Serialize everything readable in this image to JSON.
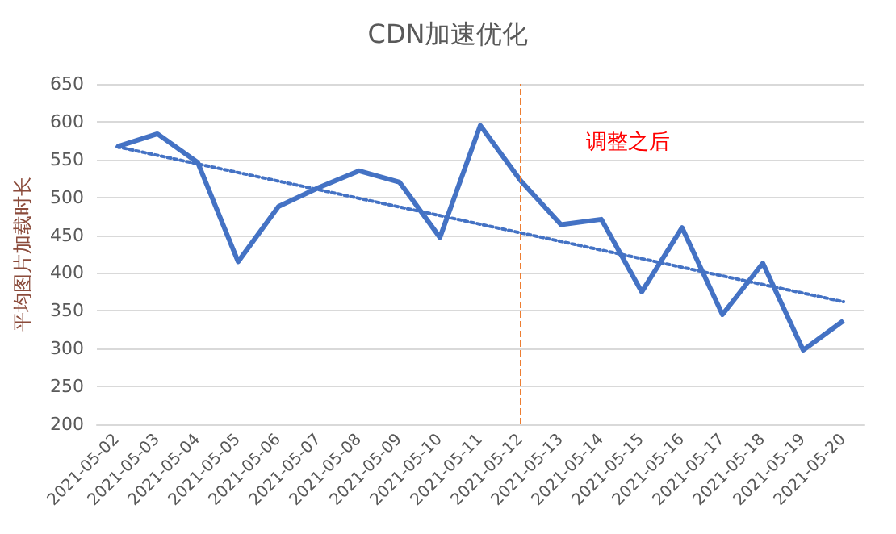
{
  "chart_data": {
    "type": "line",
    "title": "CDN加速优化",
    "ylabel": "平均图片加载时长",
    "categories": [
      "2021-05-02",
      "2021-05-03",
      "2021-05-04",
      "2021-05-05",
      "2021-05-06",
      "2021-05-07",
      "2021-05-08",
      "2021-05-09",
      "2021-05-10",
      "2021-05-11",
      "2021-05-12",
      "2021-05-13",
      "2021-05-14",
      "2021-05-15",
      "2021-05-16",
      "2021-05-17",
      "2021-05-18",
      "2021-05-19",
      "2021-05-20"
    ],
    "series": [
      {
        "color": "#4472c4",
        "values": [
          567,
          584,
          546,
          415,
          488,
          513,
          535,
          520,
          447,
          595,
          522,
          464,
          471,
          375,
          460,
          345,
          413,
          298,
          337
        ]
      },
      {
        "type": "line",
        "color": "#4472c4",
        "line_style": "dotted",
        "values": [
          567,
          null,
          null,
          null,
          null,
          null,
          null,
          null,
          null,
          null,
          null,
          null,
          null,
          null,
          null,
          null,
          null,
          null,
          362
        ]
      }
    ],
    "ylim": [
      200,
      650
    ],
    "yticks": [
      200,
      250,
      300,
      350,
      400,
      450,
      500,
      550,
      600,
      650
    ],
    "grid": "y",
    "marker": "none",
    "line_style": "solid",
    "ref_lines": [
      {
        "axis": "x",
        "value": "2021-05-12",
        "color": "#ed7d31",
        "line_style": "dashed"
      }
    ],
    "annotations": [
      "调整之后"
    ]
  }
}
